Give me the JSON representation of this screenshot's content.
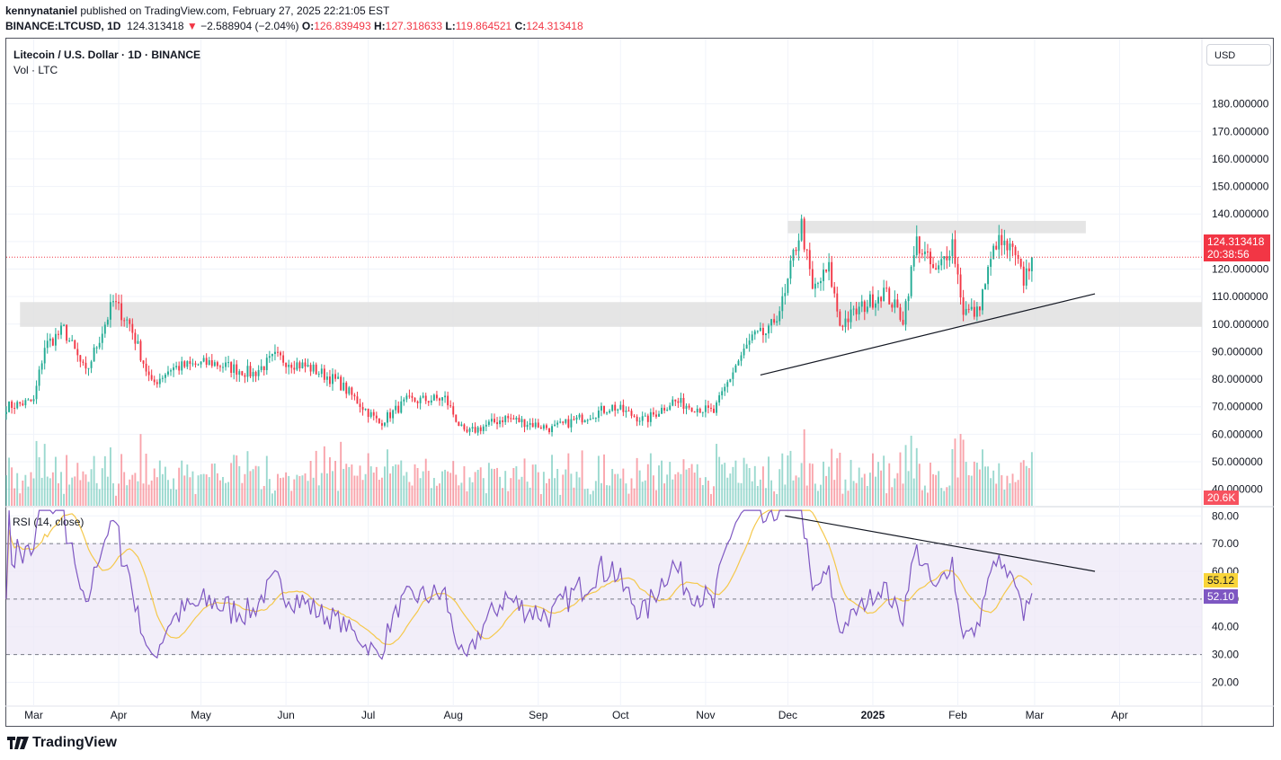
{
  "header": {
    "user": "kennynataniel",
    "published": "published on TradingView.com, February 27, 2025 22:21:05 EST",
    "ticker": "BINANCE:LTCUSD, 1D",
    "last": "124.313418",
    "change_arrow": "▼",
    "change": "−2.588904 (−2.04%)",
    "o_label": "O:",
    "o": "126.839493",
    "h_label": "H:",
    "h": "127.318633",
    "l_label": "L:",
    "l": "119.864521",
    "c_label": "C:",
    "c": "124.313418"
  },
  "pane": {
    "title": "Litecoin / U.S. Dollar · 1D · BINANCE",
    "vol_label": "Vol · LTC",
    "currency_button": "USD",
    "price_badge": "124.313418",
    "countdown_badge": "20:38:56",
    "volume_badge": "20.6K",
    "rsi_label": "RSI (14, close)",
    "rsi_badge": "52.10",
    "rsi_ma_badge": "55.12"
  },
  "colors": {
    "up": "#22ab94",
    "down": "#f23645",
    "rsi": "#7e57c2",
    "rsi_ma": "#f5c84b",
    "zone": "#e0e0e0",
    "rsi_band": "#ede7f6",
    "badge_price": "#f23645",
    "badge_rsi": "#7e57c2",
    "badge_rsi_ma": "#f9d53a"
  },
  "footer": {
    "brand": "TradingView",
    "logo_icon": "tradingview-logo-icon"
  },
  "chart_data": [
    {
      "type": "candlestick",
      "title": "Litecoin / U.S. Dollar · 1D · BINANCE",
      "y_axis_ticks": [
        "180.000000",
        "170.000000",
        "160.000000",
        "150.000000",
        "140.000000",
        "130.000000",
        "120.000000",
        "110.000000",
        "100.000000",
        "90.000000",
        "80.000000",
        "70.000000",
        "60.000000",
        "50.000000",
        "40.000000"
      ],
      "ylim": [
        34,
        190
      ],
      "x_axis_ticks": [
        "Mar",
        "Apr",
        "May",
        "Jun",
        "Jul",
        "Aug",
        "Sep",
        "Oct",
        "Nov",
        "Dec",
        "2025",
        "Feb",
        "Mar",
        "Apr"
      ],
      "last_close": 124.313418,
      "anchors": [
        {
          "date": "2024-02-20",
          "close": 70
        },
        {
          "date": "2024-03-01",
          "close": 72
        },
        {
          "date": "2024-03-05",
          "close": 92
        },
        {
          "date": "2024-03-12",
          "close": 98
        },
        {
          "date": "2024-03-20",
          "close": 82
        },
        {
          "date": "2024-03-30",
          "close": 108
        },
        {
          "date": "2024-04-05",
          "close": 100
        },
        {
          "date": "2024-04-13",
          "close": 78
        },
        {
          "date": "2024-04-20",
          "close": 84
        },
        {
          "date": "2024-05-05",
          "close": 86
        },
        {
          "date": "2024-05-20",
          "close": 82
        },
        {
          "date": "2024-05-28",
          "close": 88
        },
        {
          "date": "2024-06-10",
          "close": 84
        },
        {
          "date": "2024-06-20",
          "close": 79
        },
        {
          "date": "2024-07-05",
          "close": 64
        },
        {
          "date": "2024-07-15",
          "close": 72
        },
        {
          "date": "2024-07-29",
          "close": 73
        },
        {
          "date": "2024-08-05",
          "close": 60
        },
        {
          "date": "2024-08-20",
          "close": 66
        },
        {
          "date": "2024-09-06",
          "close": 62
        },
        {
          "date": "2024-09-28",
          "close": 70
        },
        {
          "date": "2024-10-10",
          "close": 65
        },
        {
          "date": "2024-10-20",
          "close": 72
        },
        {
          "date": "2024-11-04",
          "close": 68
        },
        {
          "date": "2024-11-12",
          "close": 85
        },
        {
          "date": "2024-11-18",
          "close": 95
        },
        {
          "date": "2024-11-24",
          "close": 97
        },
        {
          "date": "2024-11-30",
          "close": 110
        },
        {
          "date": "2024-12-03",
          "close": 125
        },
        {
          "date": "2024-12-06",
          "close": 136
        },
        {
          "date": "2024-12-10",
          "close": 112
        },
        {
          "date": "2024-12-16",
          "close": 120
        },
        {
          "date": "2024-12-20",
          "close": 100
        },
        {
          "date": "2024-12-28",
          "close": 106
        },
        {
          "date": "2025-01-05",
          "close": 112
        },
        {
          "date": "2025-01-12",
          "close": 102
        },
        {
          "date": "2025-01-17",
          "close": 130
        },
        {
          "date": "2025-01-24",
          "close": 118
        },
        {
          "date": "2025-01-30",
          "close": 130
        },
        {
          "date": "2025-02-03",
          "close": 105
        },
        {
          "date": "2025-02-08",
          "close": 104
        },
        {
          "date": "2025-02-15",
          "close": 130
        },
        {
          "date": "2025-02-21",
          "close": 126
        },
        {
          "date": "2025-02-25",
          "close": 116
        },
        {
          "date": "2025-02-28",
          "close": 124.3
        }
      ],
      "zones": [
        {
          "from": 99,
          "to": 108
        },
        {
          "from": 133,
          "to": 137.5
        }
      ],
      "trendline": {
        "from": {
          "date": "2024-11-21",
          "value": 81.5
        },
        "to": {
          "date": "2025-03-23",
          "value": 111
        }
      }
    },
    {
      "type": "line",
      "title": "RSI (14, close)",
      "series": [
        {
          "name": "RSI",
          "last": 52.1
        },
        {
          "name": "RSI-based MA",
          "last": 55.12
        }
      ],
      "y_axis_ticks": [
        "80.00",
        "70.00",
        "60.00",
        "50.00",
        "40.00",
        "30.00",
        "20.00"
      ],
      "ylim": [
        14,
        83
      ],
      "band": [
        30,
        70
      ],
      "divergence_line": {
        "from": {
          "date": "2024-11-30",
          "value": 80
        },
        "to": {
          "date": "2025-03-23",
          "value": 60
        }
      }
    }
  ]
}
